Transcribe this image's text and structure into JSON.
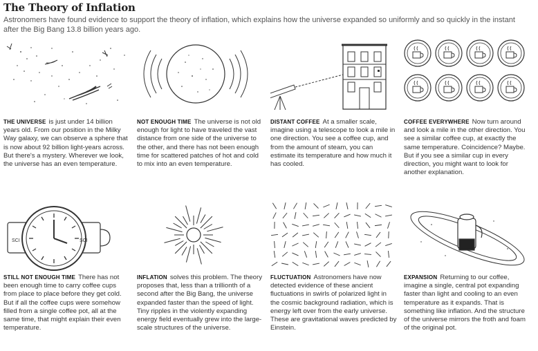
{
  "title": "The Theory of Inflation",
  "subtitle": "Astronomers have found evidence to support the theory of inflation, which explains how the universe expanded so uniformly and so quickly in the instant after the Big Bang 13.8 billion years ago.",
  "panels": [
    {
      "label": "THE UNIVERSE",
      "text": "is just under 14 billion years old. From our position in the Milky Way galaxy, we can observe a sphere that is now about 92 billion light-years across. But there's a mystery. Wherever we look, the universe has an even temperature."
    },
    {
      "label": "NOT ENOUGH TIME",
      "text": "The universe is not old enough for light to have traveled the vast distance from one side of the universe to the other, and there has not been enough time for scattered patches of hot and cold to mix into an even temperature."
    },
    {
      "label": "DISTANT COFFEE",
      "text": "At a smaller scale, imagine using a telescope to look a mile in one direction. You see a coffee cup, and from the amount of steam, you can estimate its temperature and how much it has cooled."
    },
    {
      "label": "COFFEE EVERYWHERE",
      "text": "Now turn around and look a mile in the other direction. You see a similar coffee cup, at exactly the same temperature. Coincidence? Maybe. But if you see a similar cup in every direction, you might want to look for another explanation."
    },
    {
      "label": "STILL NOT ENOUGH TIME",
      "text": "There has not been enough time to carry coffee cups from place to place before they get cold. But if all the coffee cups were somehow filled from a single coffee pot, all at the same time, that might explain their even temperature."
    },
    {
      "label": "INFLATION",
      "text": "solves this problem. The theory proposes that, less than a trillionth of a second after the Big Bang, the universe expanded faster than the speed of light. Tiny ripples in the violently expanding energy field eventually grew into the large-scale structures of the universe."
    },
    {
      "label": "FLUCTUATION",
      "text": "Astronomers have now detected evidence of these ancient fluctuations in swirls of polarized light in the cosmic background radiation, which is energy left over from the early universe. These are gravitational waves predicted by Einstein."
    },
    {
      "label": "EXPANSION",
      "text": "Returning to our coffee, imagine a single, central pot expanding faster than light and cooling to an even temperature as it expands. That is something like inflation. And the structure of the universe mirrors the froth and foam of the original pot."
    }
  ],
  "mug_text": "SCI"
}
